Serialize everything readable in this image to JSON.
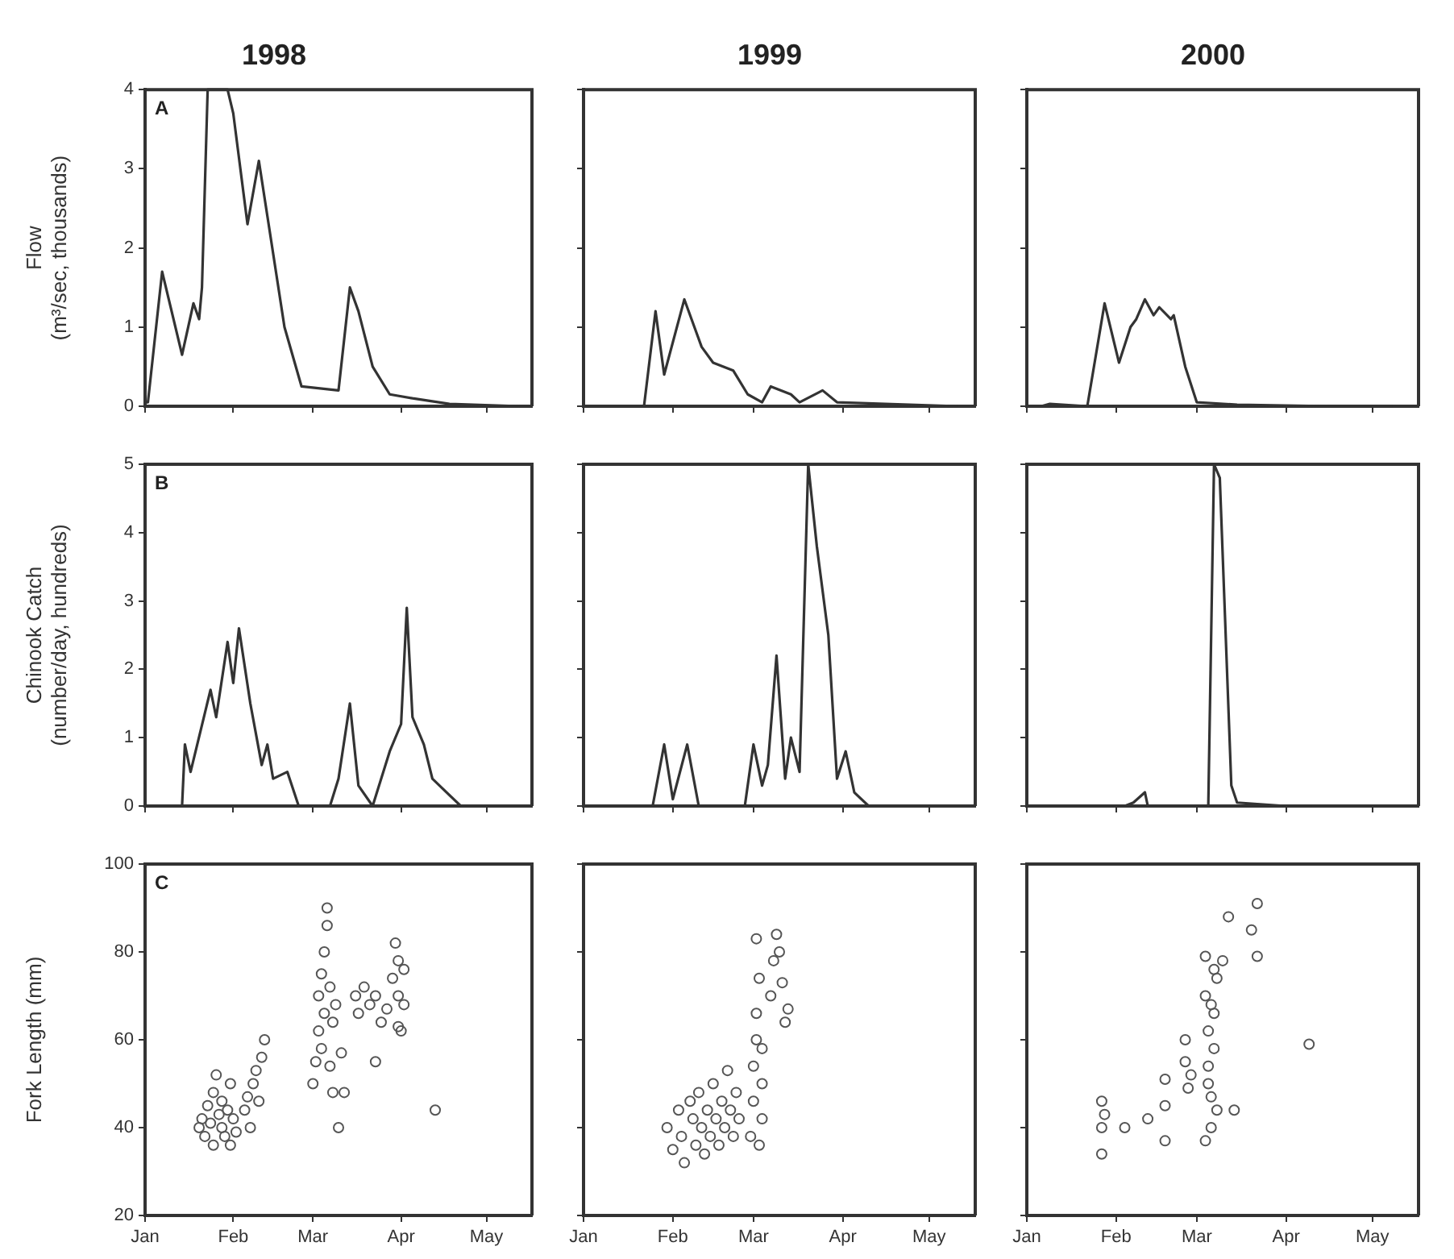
{
  "chart_data": [
    {
      "type": "line",
      "title": "1998",
      "ylabel": "Flow\n(m³/sec, thousands)",
      "annotations": [
        "A"
      ],
      "tick_labels": "y",
      "marker": "none",
      "grid": false,
      "xlim": [
        "--01-01",
        "--05-17"
      ],
      "xticks": [
        {
          "value": "--01-01",
          "label": "Jan"
        },
        {
          "value": "--02-01",
          "label": "Feb"
        },
        {
          "value": "--03-01",
          "label": "Mar"
        },
        {
          "value": "--04-01",
          "label": "Apr"
        },
        {
          "value": "--05-01",
          "label": "May"
        }
      ],
      "ylim": [
        0,
        4
      ],
      "yticks": [
        0,
        1,
        2,
        3,
        4
      ],
      "color": "#333333",
      "x": [
        "--01-01",
        "--01-02",
        "--01-07",
        "--01-14",
        "--01-18",
        "--01-20",
        "--01-21",
        "--01-23",
        "--01-30",
        "--02-01",
        "--02-06",
        "--02-10",
        "--02-13",
        "--02-19",
        "--02-25",
        "--03-10",
        "--03-14",
        "--03-17",
        "--03-22",
        "--03-28",
        "--04-05",
        "--04-18",
        "--05-13"
      ],
      "values": [
        0.05,
        0.05,
        1.7,
        0.65,
        1.3,
        1.1,
        1.5,
        4,
        4,
        3.7,
        2.3,
        3.1,
        2.4,
        1.0,
        0.25,
        0.2,
        1.5,
        1.2,
        0.5,
        0.15,
        0.1,
        0.03,
        0
      ]
    },
    {
      "type": "line",
      "title": "1999",
      "tick_labels": false,
      "marker": "none",
      "grid": false,
      "xlim": [
        "--01-01",
        "--05-17"
      ],
      "xticks": [
        {
          "value": "--01-01",
          "label": "Jan"
        },
        {
          "value": "--02-01",
          "label": "Feb"
        },
        {
          "value": "--03-01",
          "label": "Mar"
        },
        {
          "value": "--04-01",
          "label": "Apr"
        },
        {
          "value": "--05-01",
          "label": "May"
        }
      ],
      "ylim": [
        0,
        4
      ],
      "yticks": [
        0,
        1,
        2,
        3,
        4
      ],
      "color": "#333333",
      "x": [
        "--01-01",
        "--01-22",
        "--01-26",
        "--01-29",
        "--02-05",
        "--02-09",
        "--02-11",
        "--02-15",
        "--02-22",
        "--02-27",
        "--03-04",
        "--03-07",
        "--03-14",
        "--03-17",
        "--03-25",
        "--03-30",
        "--05-11"
      ],
      "values": [
        0,
        0,
        1.2,
        0.4,
        1.35,
        0.95,
        0.75,
        0.55,
        0.45,
        0.15,
        0.05,
        0.25,
        0.15,
        0.05,
        0.2,
        0.05,
        0
      ]
    },
    {
      "type": "line",
      "title": "2000",
      "tick_labels": false,
      "marker": "none",
      "grid": false,
      "xlim": [
        "--01-01",
        "--05-17"
      ],
      "xticks": [
        {
          "value": "--01-01",
          "label": "Jan"
        },
        {
          "value": "--02-01",
          "label": "Feb"
        },
        {
          "value": "--03-01",
          "label": "Mar"
        },
        {
          "value": "--04-01",
          "label": "Apr"
        },
        {
          "value": "--05-01",
          "label": "May"
        }
      ],
      "ylim": [
        0,
        4
      ],
      "yticks": [
        0,
        1,
        2,
        3,
        4
      ],
      "color": "#333333",
      "x": [
        "--01-01",
        "--01-06",
        "--01-09",
        "--01-22",
        "--01-28",
        "--02-02",
        "--02-06",
        "--02-08",
        "--02-11",
        "--02-14",
        "--02-16",
        "--02-20",
        "--02-21",
        "--02-25",
        "--03-01",
        "--03-15",
        "--04-17",
        "--05-08"
      ],
      "values": [
        0,
        0,
        0.03,
        0,
        1.3,
        0.55,
        1.0,
        1.1,
        1.35,
        1.15,
        1.25,
        1.1,
        1.15,
        0.5,
        0.05,
        0.02,
        0,
        0
      ]
    },
    {
      "type": "line",
      "ylabel": "Chinook Catch\n(number/day, hundreds)",
      "annotations": [
        "B"
      ],
      "tick_labels": "y",
      "marker": "none",
      "grid": false,
      "xlim": [
        "--01-01",
        "--05-17"
      ],
      "xticks": [
        {
          "value": "--01-01",
          "label": "Jan"
        },
        {
          "value": "--02-01",
          "label": "Feb"
        },
        {
          "value": "--03-01",
          "label": "Mar"
        },
        {
          "value": "--04-01",
          "label": "Apr"
        },
        {
          "value": "--05-01",
          "label": "May"
        }
      ],
      "ylim": [
        0,
        5
      ],
      "yticks": [
        0,
        1,
        2,
        3,
        4,
        5
      ],
      "color": "#333333",
      "x": [
        "--01-14",
        "--01-15",
        "--01-17",
        "--01-24",
        "--01-26",
        "--01-30",
        "--02-01",
        "--02-03",
        "--02-07",
        "--02-11",
        "--02-13",
        "--02-15",
        "--02-20",
        "--02-24",
        "--03-07",
        "--03-10",
        "--03-14",
        "--03-17",
        "--03-22",
        "--03-28",
        "--04-01",
        "--04-03",
        "--04-05",
        "--04-09",
        "--04-12",
        "--04-17",
        "--04-22"
      ],
      "values": [
        0,
        0.9,
        0.5,
        1.7,
        1.3,
        2.4,
        1.8,
        2.6,
        1.5,
        0.6,
        0.9,
        0.4,
        0.5,
        0,
        0,
        0.4,
        1.5,
        0.3,
        0,
        0.8,
        1.2,
        2.9,
        1.3,
        0.9,
        0.4,
        0.2,
        0
      ]
    },
    {
      "type": "line",
      "tick_labels": false,
      "marker": "none",
      "grid": false,
      "xlim": [
        "--01-01",
        "--05-17"
      ],
      "xticks": [
        {
          "value": "--01-01",
          "label": "Jan"
        },
        {
          "value": "--02-01",
          "label": "Feb"
        },
        {
          "value": "--03-01",
          "label": "Mar"
        },
        {
          "value": "--04-01",
          "label": "Apr"
        },
        {
          "value": "--05-01",
          "label": "May"
        }
      ],
      "ylim": [
        0,
        5
      ],
      "yticks": [
        0,
        1,
        2,
        3,
        4,
        5
      ],
      "color": "#333333",
      "x": [
        "--01-25",
        "--01-29",
        "--02-01",
        "--02-06",
        "--02-10",
        "--02-26",
        "--03-01",
        "--03-04",
        "--03-06",
        "--03-09",
        "--03-12",
        "--03-14",
        "--03-17",
        "--03-20",
        "--03-23",
        "--03-27",
        "--03-30",
        "--04-02",
        "--04-05",
        "--04-10"
      ],
      "values": [
        0,
        0.9,
        0.1,
        0.9,
        0,
        0,
        0.9,
        0.3,
        0.6,
        2.2,
        0.4,
        1.0,
        0.5,
        5,
        3.8,
        2.5,
        0.4,
        0.8,
        0.2,
        0
      ]
    },
    {
      "type": "line",
      "tick_labels": false,
      "marker": "none",
      "grid": false,
      "xlim": [
        "--01-01",
        "--05-17"
      ],
      "xticks": [
        {
          "value": "--01-01",
          "label": "Jan"
        },
        {
          "value": "--02-01",
          "label": "Feb"
        },
        {
          "value": "--03-01",
          "label": "Mar"
        },
        {
          "value": "--04-01",
          "label": "Apr"
        },
        {
          "value": "--05-01",
          "label": "May"
        }
      ],
      "ylim": [
        0,
        5
      ],
      "yticks": [
        0,
        1,
        2,
        3,
        4,
        5
      ],
      "color": "#333333",
      "x": [
        "--01-09",
        "--02-04",
        "--02-07",
        "--02-11",
        "--02-12",
        "--03-05",
        "--03-07",
        "--03-09",
        "--03-13",
        "--03-15",
        "--04-01",
        "--04-10"
      ],
      "values": [
        0,
        0,
        0.05,
        0.2,
        0,
        0,
        5,
        4.8,
        0.3,
        0.05,
        0,
        0
      ]
    },
    {
      "type": "scatter",
      "ylabel": "Fork Length (mm)",
      "annotations": [
        "C"
      ],
      "marker": "circle",
      "grid": false,
      "xlim": [
        "--01-01",
        "--05-17"
      ],
      "xticks": [
        {
          "value": "--01-01",
          "label": "Jan"
        },
        {
          "value": "--02-01",
          "label": "Feb"
        },
        {
          "value": "--03-01",
          "label": "Mar"
        },
        {
          "value": "--04-01",
          "label": "Apr"
        },
        {
          "value": "--05-01",
          "label": "May"
        }
      ],
      "ylim": [
        20,
        100
      ],
      "yticks": [
        20,
        40,
        60,
        80,
        100
      ],
      "color": "#555555",
      "x": [
        "--01-20",
        "--01-21",
        "--01-22",
        "--01-23",
        "--01-24",
        "--01-25",
        "--01-25",
        "--01-26",
        "--01-27",
        "--01-28",
        "--01-28",
        "--01-29",
        "--01-30",
        "--01-31",
        "--01-31",
        "--02-01",
        "--02-02",
        "--02-05",
        "--02-06",
        "--02-07",
        "--02-08",
        "--02-09",
        "--02-10",
        "--02-11",
        "--02-12",
        "--03-01",
        "--03-02",
        "--03-03",
        "--03-03",
        "--03-04",
        "--03-04",
        "--03-05",
        "--03-05",
        "--03-06",
        "--03-06",
        "--03-07",
        "--03-07",
        "--03-08",
        "--03-08",
        "--03-09",
        "--03-10",
        "--03-11",
        "--03-12",
        "--03-16",
        "--03-17",
        "--03-19",
        "--03-21",
        "--03-23",
        "--03-25",
        "--03-27",
        "--03-29",
        "--03-30",
        "--03-31",
        "--03-31",
        "--04-01",
        "--04-02",
        "--04-02",
        "--04-13",
        "--03-23",
        "--03-31"
      ],
      "values": [
        40,
        42,
        38,
        45,
        41,
        36,
        48,
        52,
        43,
        40,
        46,
        38,
        44,
        50,
        36,
        42,
        39,
        44,
        47,
        40,
        50,
        53,
        46,
        56,
        60,
        50,
        55,
        62,
        70,
        58,
        75,
        66,
        80,
        90,
        86,
        72,
        54,
        48,
        64,
        68,
        40,
        57,
        48,
        70,
        66,
        72,
        68,
        70,
        64,
        67,
        74,
        82,
        78,
        70,
        62,
        76,
        68,
        44,
        55,
        63
      ]
    },
    {
      "type": "scatter",
      "tick_labels": "x",
      "marker": "circle",
      "grid": false,
      "xlim": [
        "--01-01",
        "--05-17"
      ],
      "xticks": [
        {
          "value": "--01-01",
          "label": "Jan"
        },
        {
          "value": "--02-01",
          "label": "Feb"
        },
        {
          "value": "--03-01",
          "label": "Mar"
        },
        {
          "value": "--04-01",
          "label": "Apr"
        },
        {
          "value": "--05-01",
          "label": "May"
        }
      ],
      "ylim": [
        20,
        100
      ],
      "yticks": [
        20,
        40,
        60,
        80,
        100
      ],
      "color": "#555555",
      "x": [
        "--01-30",
        "--02-01",
        "--02-03",
        "--02-04",
        "--02-05",
        "--02-07",
        "--02-08",
        "--02-09",
        "--02-10",
        "--02-11",
        "--02-12",
        "--02-13",
        "--02-14",
        "--02-15",
        "--02-16",
        "--02-17",
        "--02-18",
        "--02-19",
        "--02-20",
        "--02-21",
        "--02-22",
        "--02-23",
        "--02-24",
        "--02-28",
        "--03-01",
        "--03-01",
        "--03-02",
        "--03-02",
        "--03-02",
        "--03-03",
        "--03-03",
        "--03-04",
        "--03-04",
        "--03-04",
        "--03-07",
        "--03-08",
        "--03-09",
        "--03-10",
        "--03-11",
        "--03-12",
        "--03-13"
      ],
      "values": [
        40,
        35,
        44,
        38,
        32,
        46,
        42,
        36,
        48,
        40,
        34,
        44,
        38,
        50,
        42,
        36,
        46,
        40,
        53,
        44,
        38,
        48,
        42,
        38,
        46,
        54,
        60,
        66,
        83,
        74,
        36,
        42,
        50,
        58,
        70,
        78,
        84,
        80,
        73,
        64,
        67
      ]
    },
    {
      "type": "scatter",
      "tick_labels": "x",
      "marker": "circle",
      "grid": false,
      "xlim": [
        "--01-01",
        "--05-17"
      ],
      "xticks": [
        {
          "value": "--01-01",
          "label": "Jan"
        },
        {
          "value": "--02-01",
          "label": "Feb"
        },
        {
          "value": "--03-01",
          "label": "Mar"
        },
        {
          "value": "--04-01",
          "label": "Apr"
        },
        {
          "value": "--05-01",
          "label": "May"
        }
      ],
      "ylim": [
        20,
        100
      ],
      "yticks": [
        20,
        40,
        60,
        80,
        100
      ],
      "color": "#555555",
      "x": [
        "--01-27",
        "--01-27",
        "--01-27",
        "--01-28",
        "--02-04",
        "--02-12",
        "--02-18",
        "--02-18",
        "--02-18",
        "--02-25",
        "--02-25",
        "--02-26",
        "--02-27",
        "--03-04",
        "--03-04",
        "--03-05",
        "--03-05",
        "--03-06",
        "--03-06",
        "--03-07",
        "--03-07",
        "--03-08",
        "--03-08",
        "--03-04",
        "--03-05",
        "--03-06",
        "--03-07",
        "--03-12",
        "--03-22",
        "--03-20",
        "--03-10",
        "--03-22",
        "--03-14",
        "--04-09"
      ],
      "values": [
        46,
        40,
        34,
        43,
        40,
        42,
        45,
        51,
        37,
        60,
        55,
        49,
        52,
        79,
        70,
        62,
        54,
        47,
        40,
        66,
        58,
        74,
        44,
        37,
        50,
        68,
        76,
        88,
        91,
        85,
        78,
        79,
        44,
        59
      ]
    }
  ]
}
